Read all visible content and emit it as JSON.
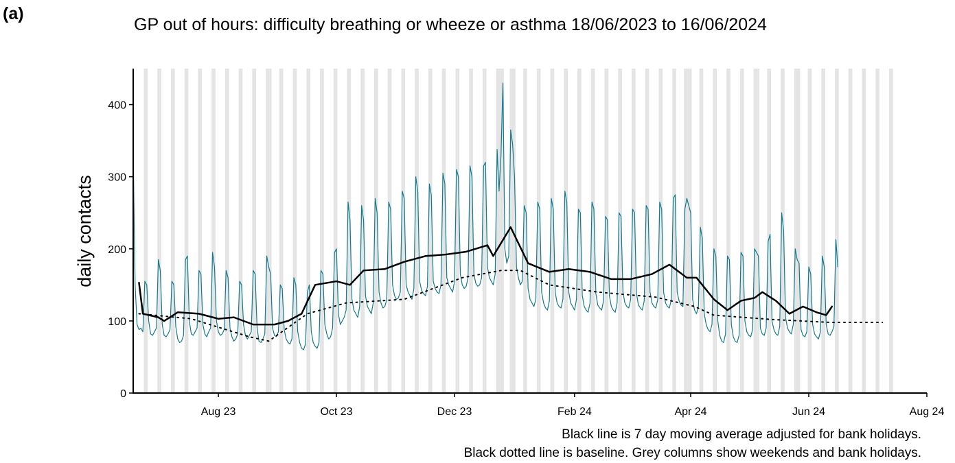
{
  "panel_label": "(a)",
  "chart_data": {
    "type": "line",
    "title": "GP out of hours: difficulty breathing or wheeze or asthma 18/06/2023 to 16/06/2024",
    "ylabel": "daily contacts",
    "notes": [
      "Black line is 7 day moving average adjusted for bank holidays.",
      "Black dotted line is baseline. Grey columns show weekends and bank holidays."
    ],
    "xlim": [
      0,
      410
    ],
    "xticks": [
      {
        "value": 44,
        "label": "Aug 23"
      },
      {
        "value": 105,
        "label": "Oct 23"
      },
      {
        "value": 166,
        "label": "Dec 23"
      },
      {
        "value": 228,
        "label": "Feb 24"
      },
      {
        "value": 288,
        "label": "Apr 24"
      },
      {
        "value": 349,
        "label": "Jun 24"
      },
      {
        "value": 410,
        "label": "Aug 24"
      }
    ],
    "ylim": [
      0,
      450
    ],
    "yticks": [
      0,
      100,
      200,
      300,
      400
    ],
    "shade_color": "#e4e4e4",
    "shaded_days": [
      0,
      6,
      7,
      13,
      14,
      20,
      21,
      27,
      28,
      34,
      35,
      41,
      42,
      48,
      49,
      55,
      56,
      62,
      63,
      69,
      70,
      71,
      76,
      77,
      83,
      84,
      90,
      91,
      97,
      98,
      104,
      105,
      111,
      112,
      118,
      119,
      125,
      126,
      132,
      133,
      139,
      140,
      146,
      147,
      153,
      154,
      160,
      161,
      167,
      168,
      174,
      175,
      181,
      182,
      188,
      189,
      190,
      191,
      195,
      196,
      197,
      202,
      203,
      209,
      210,
      216,
      217,
      223,
      224,
      230,
      231,
      237,
      238,
      244,
      245,
      251,
      252,
      258,
      259,
      265,
      266,
      272,
      273,
      279,
      280,
      285,
      286,
      287,
      288,
      293,
      294,
      300,
      301,
      307,
      308,
      314,
      315,
      321,
      322,
      323,
      328,
      329,
      335,
      336,
      342,
      343,
      344,
      349,
      350,
      356,
      357,
      363,
      364,
      370,
      371,
      377,
      378,
      384,
      385,
      391,
      392
    ],
    "series": [
      {
        "color": "#137a8e",
        "width": 1.2,
        "dash": "none",
        "x": [
          0,
          1,
          2,
          3,
          4,
          5,
          6,
          7,
          8,
          9,
          10,
          11,
          12,
          13,
          14,
          15,
          16,
          17,
          18,
          19,
          20,
          21,
          22,
          23,
          24,
          25,
          26,
          27,
          28,
          29,
          30,
          31,
          32,
          33,
          34,
          35,
          36,
          37,
          38,
          39,
          40,
          41,
          42,
          43,
          44,
          45,
          46,
          47,
          48,
          49,
          50,
          51,
          52,
          53,
          54,
          55,
          56,
          57,
          58,
          59,
          60,
          61,
          62,
          63,
          64,
          65,
          66,
          67,
          68,
          69,
          70,
          71,
          72,
          73,
          74,
          75,
          76,
          77,
          78,
          79,
          80,
          81,
          82,
          83,
          84,
          85,
          86,
          87,
          88,
          89,
          90,
          91,
          92,
          93,
          94,
          95,
          96,
          97,
          98,
          99,
          100,
          101,
          102,
          103,
          104,
          105,
          106,
          107,
          108,
          109,
          110,
          111,
          112,
          113,
          114,
          115,
          116,
          117,
          118,
          119,
          120,
          121,
          122,
          123,
          124,
          125,
          126,
          127,
          128,
          129,
          130,
          131,
          132,
          133,
          134,
          135,
          136,
          137,
          138,
          139,
          140,
          141,
          142,
          143,
          144,
          145,
          146,
          147,
          148,
          149,
          150,
          151,
          152,
          153,
          154,
          155,
          156,
          157,
          158,
          159,
          160,
          161,
          162,
          163,
          164,
          165,
          166,
          167,
          168,
          169,
          170,
          171,
          172,
          173,
          174,
          175,
          176,
          177,
          178,
          179,
          180,
          181,
          182,
          183,
          184,
          185,
          186,
          187,
          188,
          189,
          190,
          191,
          192,
          193,
          194,
          195,
          196,
          197,
          198,
          199,
          200,
          201,
          202,
          203,
          204,
          205,
          206,
          207,
          208,
          209,
          210,
          211,
          212,
          213,
          214,
          215,
          216,
          217,
          218,
          219,
          220,
          221,
          222,
          223,
          224,
          225,
          226,
          227,
          228,
          229,
          230,
          231,
          232,
          233,
          234,
          235,
          236,
          237,
          238,
          239,
          240,
          241,
          242,
          243,
          244,
          245,
          246,
          247,
          248,
          249,
          250,
          251,
          252,
          253,
          254,
          255,
          256,
          257,
          258,
          259,
          260,
          261,
          262,
          263,
          264,
          265,
          266,
          267,
          268,
          269,
          270,
          271,
          272,
          273,
          274,
          275,
          276,
          277,
          278,
          279,
          280,
          281,
          282,
          283,
          284,
          285,
          286,
          287,
          288,
          289,
          290,
          291,
          292,
          293,
          294,
          295,
          296,
          297,
          298,
          299,
          300,
          301,
          302,
          303,
          304,
          305,
          306,
          307,
          308,
          309,
          310,
          311,
          312,
          313,
          314,
          315,
          316,
          317,
          318,
          319,
          320,
          321,
          322,
          323,
          324,
          325,
          326,
          327,
          328,
          329,
          330,
          331,
          332,
          333,
          334,
          335,
          336,
          337,
          338,
          339,
          340,
          341,
          342,
          343,
          344,
          345,
          346,
          347,
          348,
          349,
          350,
          351,
          352,
          353,
          354,
          355,
          356,
          357,
          358,
          359,
          360,
          361,
          362,
          363,
          364
        ],
        "values": [
          335,
          150,
          95,
          88,
          90,
          85,
          155,
          150,
          100,
          82,
          80,
          85,
          90,
          185,
          170,
          95,
          80,
          78,
          82,
          88,
          155,
          150,
          92,
          75,
          70,
          72,
          80,
          185,
          190,
          100,
          82,
          80,
          85,
          90,
          170,
          165,
          95,
          82,
          78,
          85,
          90,
          195,
          175,
          100,
          85,
          80,
          82,
          88,
          170,
          160,
          90,
          78,
          72,
          75,
          82,
          155,
          150,
          95,
          80,
          75,
          80,
          85,
          170,
          165,
          90,
          72,
          70,
          75,
          82,
          190,
          175,
          165,
          90,
          80,
          78,
          85,
          150,
          145,
          88,
          75,
          70,
          68,
          75,
          160,
          150,
          85,
          70,
          62,
          60,
          68,
          140,
          150,
          85,
          70,
          65,
          62,
          70,
          170,
          165,
          95,
          82,
          75,
          78,
          90,
          195,
          200,
          110,
          95,
          100,
          105,
          115,
          265,
          240,
          130,
          115,
          110,
          105,
          120,
          260,
          240,
          135,
          120,
          115,
          110,
          125,
          270,
          250,
          140,
          125,
          118,
          120,
          130,
          265,
          255,
          150,
          135,
          130,
          132,
          140,
          280,
          270,
          150,
          140,
          135,
          130,
          145,
          300,
          280,
          155,
          142,
          138,
          135,
          148,
          290,
          275,
          155,
          145,
          140,
          138,
          150,
          305,
          290,
          160,
          150,
          145,
          140,
          155,
          310,
          300,
          165,
          150,
          145,
          148,
          160,
          315,
          300,
          165,
          152,
          148,
          150,
          160,
          315,
          320,
          175,
          160,
          155,
          150,
          165,
          338,
          280,
          330,
          430,
          200,
          180,
          190,
          365,
          345,
          300,
          175,
          160,
          150,
          155,
          260,
          250,
          145,
          130,
          125,
          120,
          130,
          265,
          255,
          140,
          125,
          118,
          115,
          128,
          270,
          255,
          140,
          125,
          120,
          118,
          130,
          280,
          265,
          140,
          125,
          120,
          115,
          130,
          255,
          250,
          135,
          120,
          115,
          112,
          125,
          265,
          255,
          138,
          122,
          118,
          115,
          128,
          245,
          240,
          135,
          120,
          115,
          112,
          125,
          250,
          245,
          140,
          125,
          120,
          118,
          130,
          255,
          250,
          138,
          122,
          118,
          115,
          128,
          260,
          255,
          140,
          125,
          120,
          118,
          130,
          265,
          255,
          140,
          125,
          120,
          118,
          130,
          270,
          275,
          140,
          128,
          122,
          120,
          255,
          270,
          260,
          250,
          130,
          115,
          110,
          120,
          230,
          215,
          110,
          95,
          88,
          85,
          95,
          200,
          190,
          100,
          80,
          72,
          70,
          82,
          190,
          185,
          95,
          78,
          72,
          70,
          80,
          195,
          190,
          100,
          85,
          80,
          78,
          88,
          200,
          195,
          190,
          90,
          82,
          80,
          90,
          210,
          220,
          100,
          88,
          82,
          80,
          92,
          250,
          225,
          105,
          90,
          85,
          82,
          95,
          200,
          185,
          180,
          88,
          80,
          78,
          85,
          175,
          165,
          95,
          82,
          78,
          75,
          85,
          190,
          175,
          95,
          82,
          80,
          85,
          92,
          213,
          175
        ]
      },
      {
        "color": "#000000",
        "width": 2.5,
        "dash": "none",
        "x": [
          3,
          5,
          13,
          16,
          23,
          34,
          44,
          52,
          62,
          73,
          80,
          87,
          94,
          105,
          112,
          119,
          130,
          140,
          151,
          161,
          172,
          183,
          186,
          195,
          204,
          215,
          225,
          236,
          247,
          257,
          268,
          277,
          286,
          291,
          300,
          307,
          314,
          321,
          325,
          332,
          339,
          346,
          353,
          358,
          361
        ],
        "values": [
          153,
          110,
          105,
          100,
          112,
          110,
          103,
          105,
          95,
          95,
          100,
          110,
          150,
          155,
          150,
          170,
          172,
          182,
          190,
          192,
          196,
          205,
          190,
          230,
          180,
          168,
          172,
          168,
          158,
          158,
          165,
          178,
          160,
          160,
          130,
          115,
          128,
          132,
          140,
          128,
          110,
          120,
          112,
          108,
          120
        ]
      },
      {
        "color": "#000000",
        "width": 2,
        "dash": "2 6",
        "x": [
          3,
          30,
          60,
          70,
          90,
          110,
          140,
          170,
          190,
          200,
          215,
          240,
          270,
          290,
          300,
          330,
          360,
          387
        ],
        "values": [
          110,
          103,
          78,
          72,
          110,
          125,
          130,
          160,
          170,
          170,
          150,
          140,
          133,
          120,
          108,
          102,
          98,
          98
        ]
      }
    ]
  }
}
